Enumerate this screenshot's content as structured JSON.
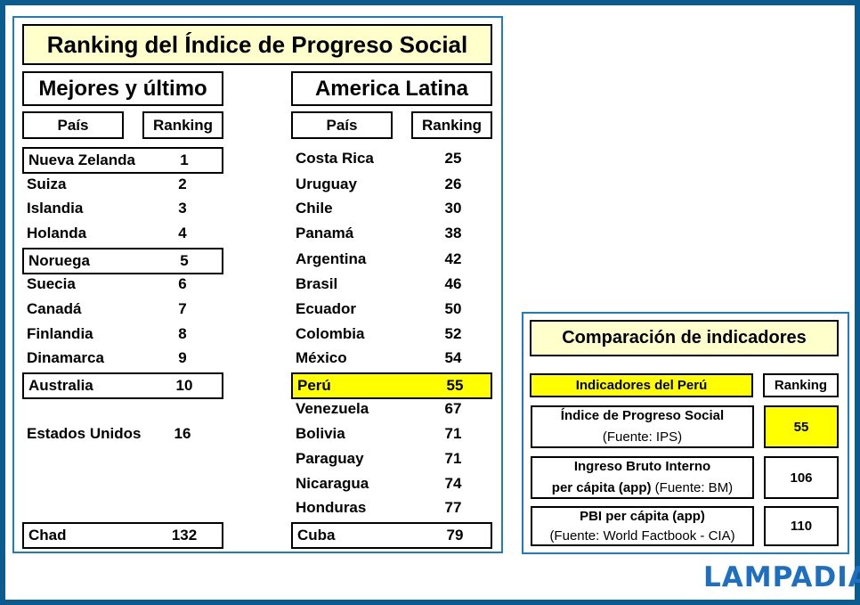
{
  "title": "Ranking del Índice de Progreso Social",
  "left": {
    "heading": "Mejores y último",
    "col_country": "País",
    "col_rank": "Ranking",
    "rows": [
      {
        "country": "Nueva Zelanda",
        "rank": "1",
        "boxed": true
      },
      {
        "country": "Suiza",
        "rank": "2"
      },
      {
        "country": "Islandia",
        "rank": "3"
      },
      {
        "country": "Holanda",
        "rank": "4"
      },
      {
        "country": "Noruega",
        "rank": "5",
        "boxed": true
      },
      {
        "country": "Suecia",
        "rank": "6"
      },
      {
        "country": "Canadá",
        "rank": "7"
      },
      {
        "country": "Finlandia",
        "rank": "8"
      },
      {
        "country": "Dinamarca",
        "rank": "9"
      },
      {
        "country": "Australia",
        "rank": "10",
        "boxed": true
      },
      {
        "country": "Estados Unidos",
        "rank": "16"
      },
      {
        "country": "Chad",
        "rank": "132",
        "boxed": true
      }
    ]
  },
  "right": {
    "heading": "America Latina",
    "col_country": "País",
    "col_rank": "Ranking",
    "rows": [
      {
        "country": "Costa Rica",
        "rank": "25"
      },
      {
        "country": "Uruguay",
        "rank": "26"
      },
      {
        "country": "Chile",
        "rank": "30"
      },
      {
        "country": "Panamá",
        "rank": "38"
      },
      {
        "country": "Argentina",
        "rank": "42"
      },
      {
        "country": "Brasil",
        "rank": "46"
      },
      {
        "country": "Ecuador",
        "rank": "50"
      },
      {
        "country": "Colombia",
        "rank": "52"
      },
      {
        "country": "México",
        "rank": "54"
      },
      {
        "country": "Perú",
        "rank": "55",
        "boxed": true,
        "highlight": true
      },
      {
        "country": "Venezuela",
        "rank": "67"
      },
      {
        "country": "Bolivia",
        "rank": "71"
      },
      {
        "country": "Paraguay",
        "rank": "71"
      },
      {
        "country": "Nicaragua",
        "rank": "74"
      },
      {
        "country": "Honduras",
        "rank": "77"
      },
      {
        "country": "Cuba",
        "rank": "79",
        "boxed": true
      }
    ]
  },
  "comparison": {
    "title": "Comparación de indicadores",
    "col_indicator": "Indicadores del Perú",
    "col_rank": "Ranking",
    "items": [
      {
        "line1": "Índice de Progreso Social",
        "line2_bold": "",
        "source": "(Fuente: IPS)",
        "rank": "55",
        "highlight": true
      },
      {
        "line1": "Ingreso Bruto Interno",
        "line2_bold": "per cápita (app)",
        "source": "(Fuente: BM)",
        "rank": "106"
      },
      {
        "line1": "PBI per cápita (app)",
        "line2_bold": "",
        "source": "(Fuente: World Factbook - CIA)",
        "rank": "110"
      }
    ]
  },
  "colors": {
    "frame": "#0b5b8f",
    "panel_border": "#1e7cc0",
    "cream": "#ffffcc",
    "highlight": "#ffff00",
    "logo": "#1e6fc0"
  },
  "logo": "LAMPADIA"
}
